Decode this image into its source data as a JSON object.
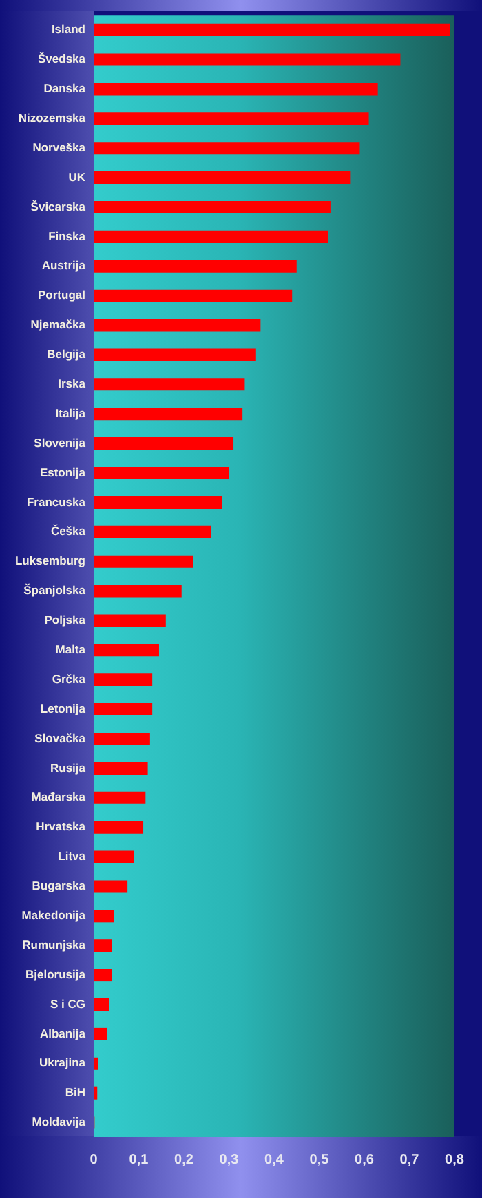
{
  "chart_data": {
    "type": "bar",
    "orientation": "horizontal",
    "categories": [
      "Island",
      "Švedska",
      "Danska",
      "Nizozemska",
      "Norveška",
      "UK",
      "Švicarska",
      "Finska",
      "Austrija",
      "Portugal",
      "Njemačka",
      "Belgija",
      "Irska",
      "Italija",
      "Slovenija",
      "Estonija",
      "Francuska",
      "Češka",
      "Luksemburg",
      "Španjolska",
      "Poljska",
      "Malta",
      "Grčka",
      "Letonija",
      "Slovačka",
      "Rusija",
      "Mađarska",
      "Hrvatska",
      "Litva",
      "Bugarska",
      "Makedonija",
      "Rumunjska",
      "Bjelorusija",
      "S i CG",
      "Albanija",
      "Ukrajina",
      "BiH",
      "Moldavija"
    ],
    "values": [
      0.79,
      0.68,
      0.63,
      0.61,
      0.59,
      0.57,
      0.525,
      0.52,
      0.45,
      0.44,
      0.37,
      0.36,
      0.335,
      0.33,
      0.31,
      0.3,
      0.285,
      0.26,
      0.22,
      0.195,
      0.16,
      0.145,
      0.13,
      0.13,
      0.125,
      0.12,
      0.115,
      0.11,
      0.09,
      0.075,
      0.045,
      0.04,
      0.04,
      0.035,
      0.03,
      0.01,
      0.008,
      0.002
    ],
    "color": "#ff0000",
    "xlim": [
      0,
      0.8
    ],
    "xticks": [
      {
        "value": 0,
        "label": "0"
      },
      {
        "value": 0.1,
        "label": "0,1"
      },
      {
        "value": 0.2,
        "label": "0,2"
      },
      {
        "value": 0.3,
        "label": "0,3"
      },
      {
        "value": 0.4,
        "label": "0,4"
      },
      {
        "value": 0.5,
        "label": "0,5"
      },
      {
        "value": 0.6,
        "label": "0,6"
      },
      {
        "value": 0.7,
        "label": "0,7"
      },
      {
        "value": 0.8,
        "label": "0,8"
      }
    ]
  }
}
